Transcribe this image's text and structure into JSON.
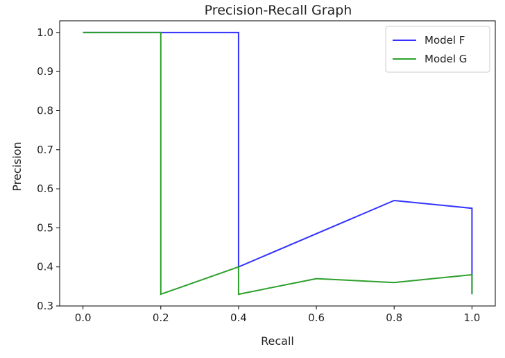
{
  "chart_data": {
    "type": "line",
    "title": "Precision-Recall Graph",
    "xlabel": "Recall",
    "ylabel": "Precision",
    "xlim": [
      -0.06,
      1.06
    ],
    "ylim": [
      0.3,
      1.03
    ],
    "xticks": [
      0.0,
      0.2,
      0.4,
      0.6,
      0.8,
      1.0
    ],
    "xtick_labels": [
      "0.0",
      "0.2",
      "0.4",
      "0.6",
      "0.8",
      "1.0"
    ],
    "yticks": [
      0.3,
      0.4,
      0.5,
      0.6,
      0.7,
      0.8,
      0.9,
      1.0
    ],
    "ytick_labels": [
      "0.3",
      "0.4",
      "0.5",
      "0.6",
      "0.7",
      "0.8",
      "0.9",
      "1.0"
    ],
    "grid": false,
    "legend_position": "top-right",
    "series": [
      {
        "name": "Model F",
        "color": "#3333ff",
        "x": [
          0.0,
          0.4,
          0.4,
          0.8,
          1.0,
          1.0
        ],
        "y": [
          1.0,
          1.0,
          0.4,
          0.57,
          0.55,
          0.33
        ]
      },
      {
        "name": "Model G",
        "color": "#2ca02c",
        "x": [
          0.0,
          0.2,
          0.2,
          0.4,
          0.4,
          0.6,
          0.8,
          1.0,
          1.0
        ],
        "y": [
          1.0,
          1.0,
          0.33,
          0.4,
          0.33,
          0.37,
          0.36,
          0.38,
          0.33
        ]
      }
    ]
  }
}
